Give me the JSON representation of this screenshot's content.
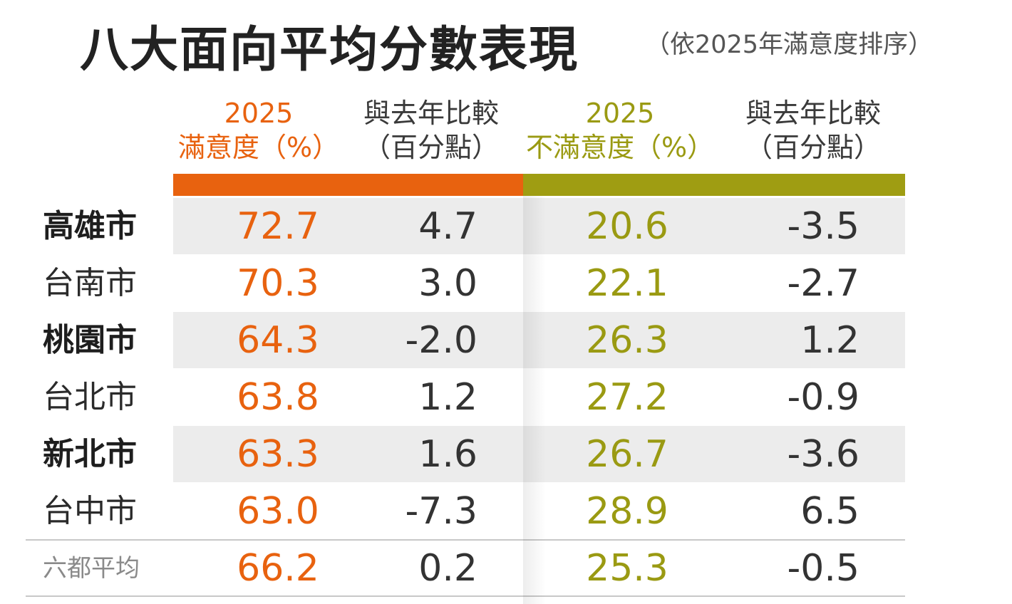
{
  "title": "八大面向平均分數表現",
  "subtitle": "（依2025年滿意度排序）",
  "headers": {
    "sat": [
      "2025",
      "滿意度（%）"
    ],
    "sat_diff": [
      "與去年比較",
      "（百分點）"
    ],
    "dissat": [
      "2025",
      "不滿意度（%）"
    ],
    "dissat_diff": [
      "與去年比較",
      "（百分點）"
    ]
  },
  "colors": {
    "satisfaction": "#e8620f",
    "dissatisfaction": "#9a9a12"
  },
  "chart_data": {
    "type": "table",
    "title": "八大面向平均分數表現",
    "subtitle": "（依2025年滿意度排序）",
    "columns": [
      "2025 滿意度（%）",
      "與去年比較（百分點）",
      "2025 不滿意度（%）",
      "與去年比較（百分點）"
    ],
    "rows": [
      {
        "city": "高雄市",
        "bold": true,
        "satisfaction": "72.7",
        "sat_change": "4.7",
        "dissatisfaction": "20.6",
        "dissat_change": "-3.5"
      },
      {
        "city": "台南市",
        "bold": false,
        "satisfaction": "70.3",
        "sat_change": "3.0",
        "dissatisfaction": "22.1",
        "dissat_change": "-2.7"
      },
      {
        "city": "桃園市",
        "bold": true,
        "satisfaction": "64.3",
        "sat_change": "-2.0",
        "dissatisfaction": "26.3",
        "dissat_change": "1.2"
      },
      {
        "city": "台北市",
        "bold": false,
        "satisfaction": "63.8",
        "sat_change": "1.2",
        "dissatisfaction": "27.2",
        "dissat_change": "-0.9"
      },
      {
        "city": "新北市",
        "bold": true,
        "satisfaction": "63.3",
        "sat_change": "1.6",
        "dissatisfaction": "26.7",
        "dissat_change": "-3.6"
      },
      {
        "city": "台中市",
        "bold": false,
        "satisfaction": "63.0",
        "sat_change": "-7.3",
        "dissatisfaction": "28.9",
        "dissat_change": "6.5"
      }
    ],
    "average": {
      "city": "六都平均",
      "satisfaction": "66.2",
      "sat_change": "0.2",
      "dissatisfaction": "25.3",
      "dissat_change": "-0.5"
    }
  }
}
